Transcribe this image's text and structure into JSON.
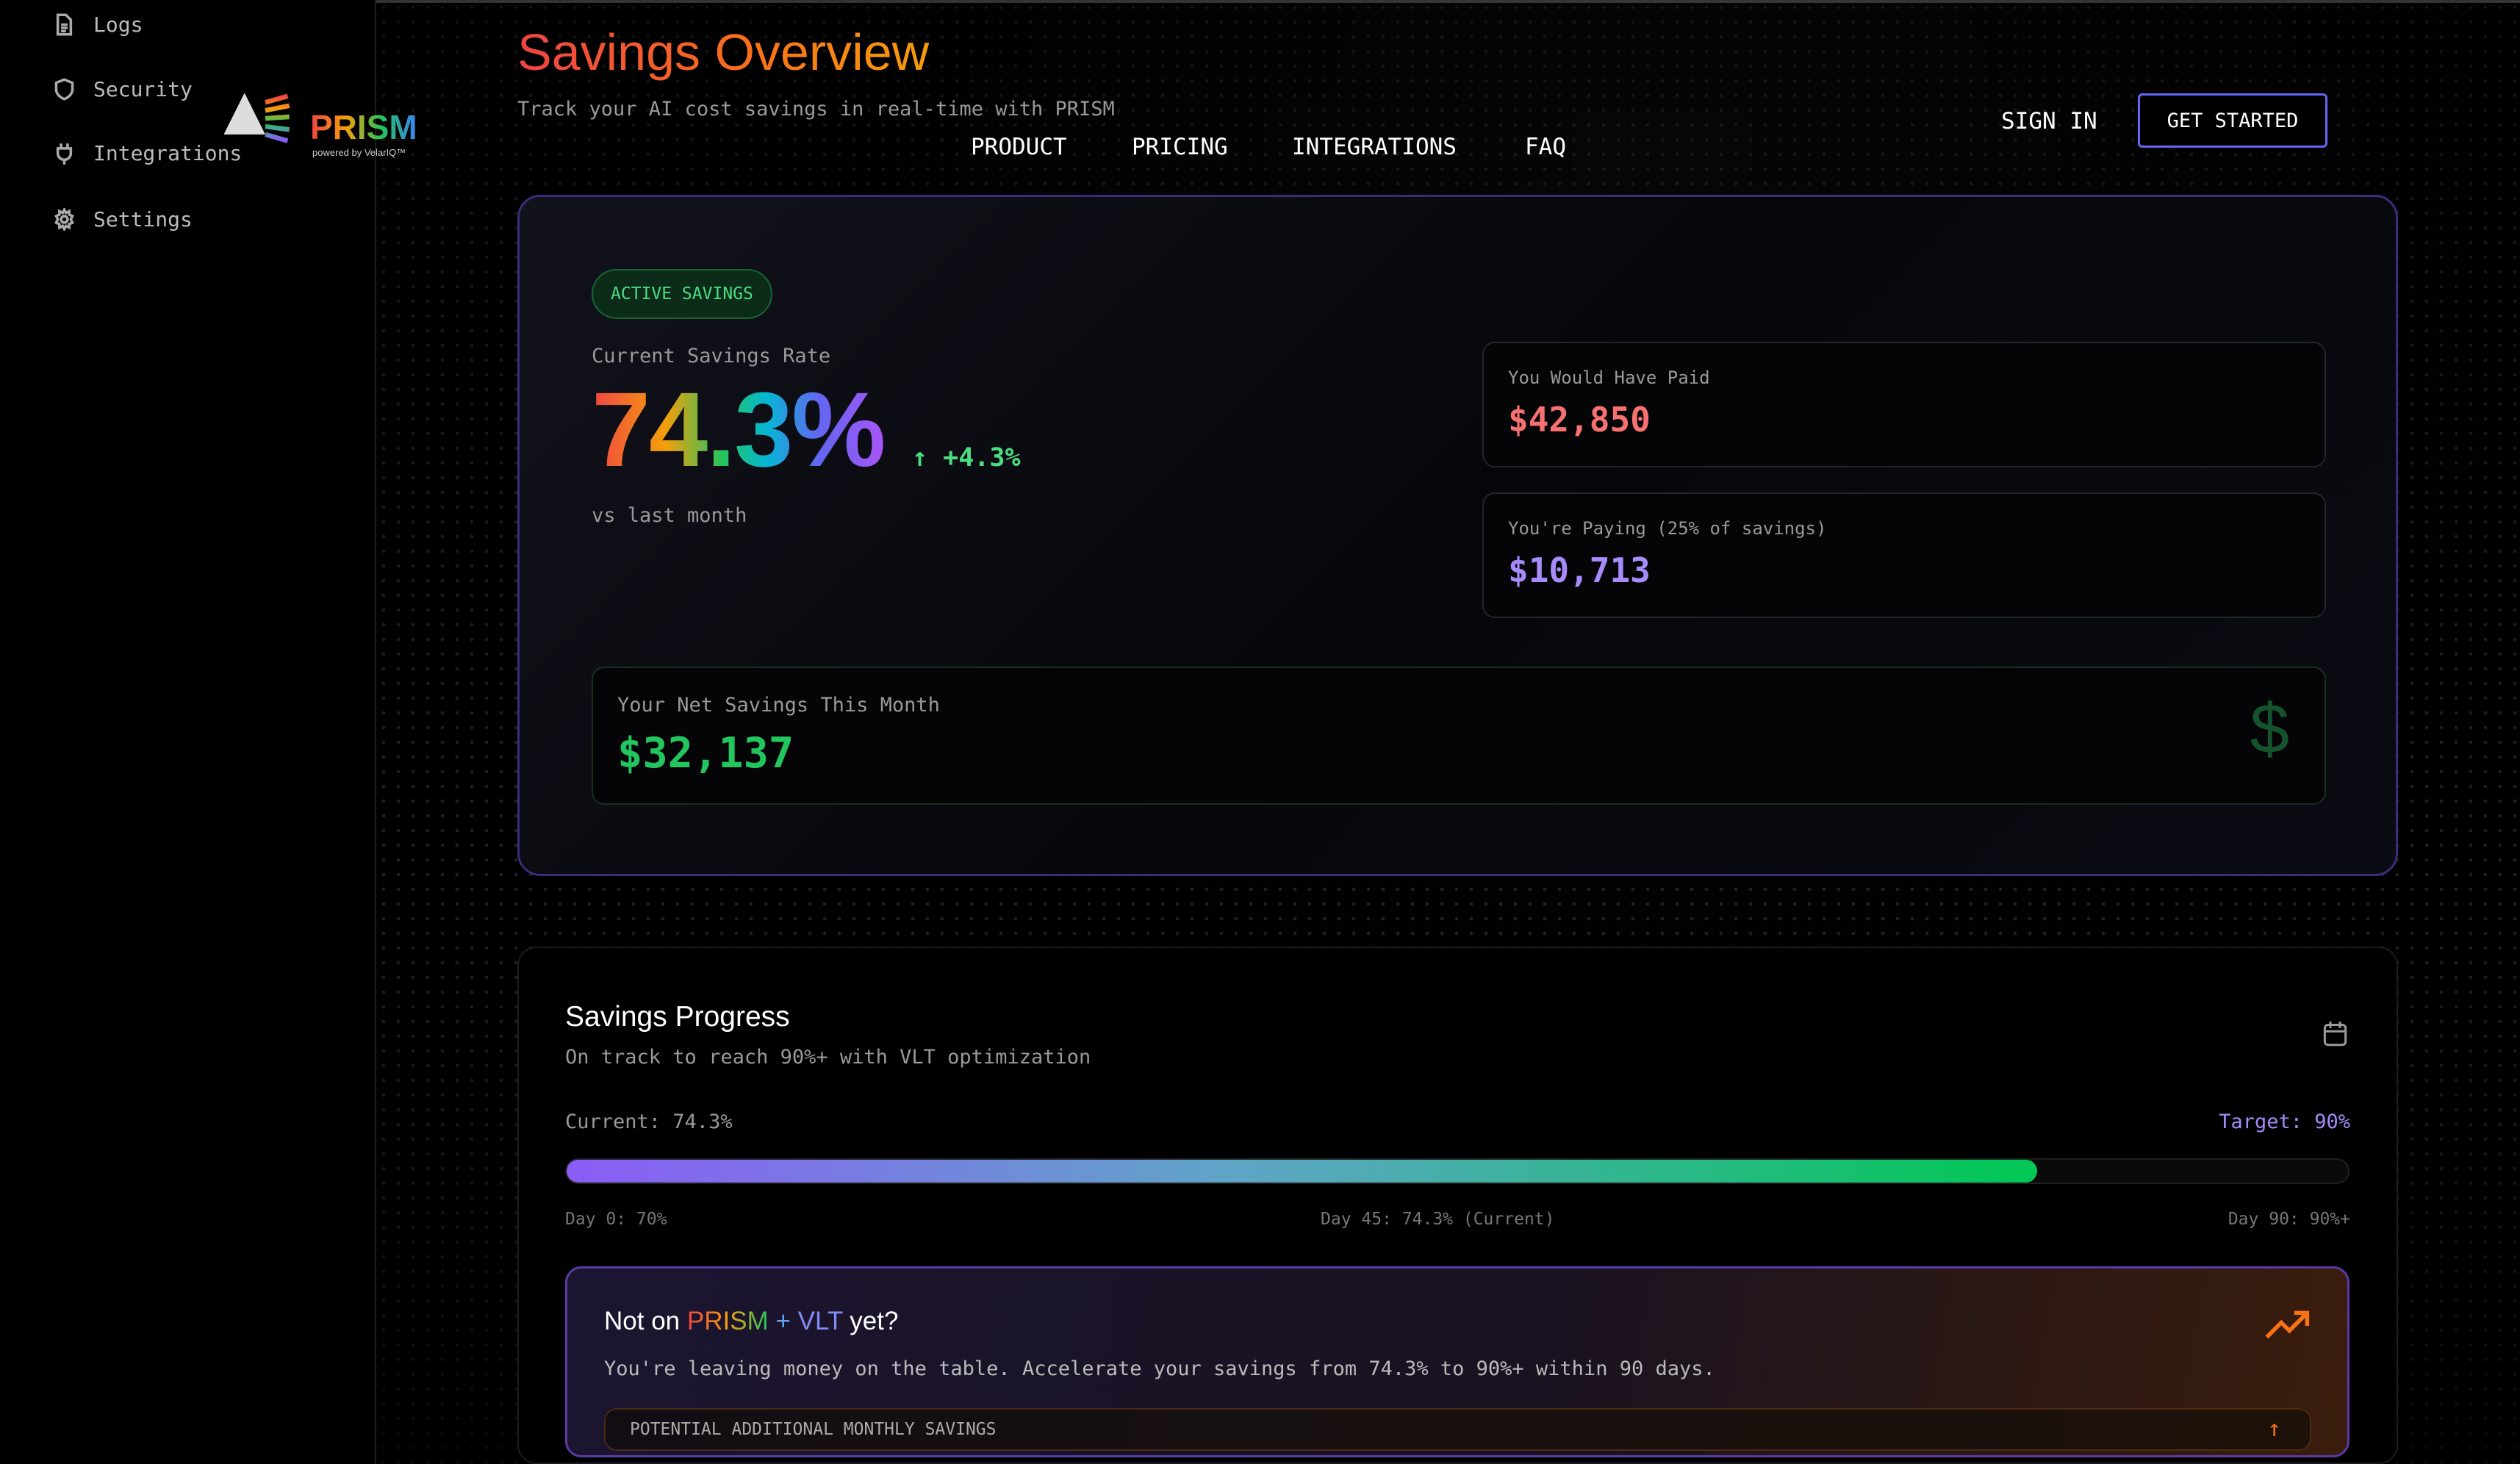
{
  "sidebar": {
    "items": [
      {
        "label": "Logs",
        "icon": "file-text-icon"
      },
      {
        "label": "Security",
        "icon": "shield-icon"
      },
      {
        "label": "Integrations",
        "icon": "plug-icon"
      },
      {
        "label": "Settings",
        "icon": "gear-icon"
      }
    ]
  },
  "logo": {
    "name": "PRISM",
    "tagline": "powered by VelarIQ™"
  },
  "header": {
    "title": "Savings Overview",
    "subtitle": "Track your AI cost savings in real-time with PRISM"
  },
  "nav": {
    "items": [
      "PRODUCT",
      "PRICING",
      "INTEGRATIONS",
      "FAQ"
    ],
    "sign_in": "SIGN IN",
    "get_started": "GET STARTED"
  },
  "overview": {
    "badge": "ACTIVE SAVINGS",
    "rate_label": "Current Savings Rate",
    "rate": "74.3%",
    "delta": "+4.3%",
    "delta_note": "vs last month",
    "would_have_paid_label": "You Would Have Paid",
    "would_have_paid": "$42,850",
    "paying_label": "You're Paying (25% of savings)",
    "paying": "$10,713",
    "net_label": "Your Net Savings This Month",
    "net": "$32,137"
  },
  "progress": {
    "title": "Savings Progress",
    "subtitle": "On track to reach 90%+ with VLT optimization",
    "current_label": "Current: 74.3%",
    "target_label": "Target: 90%",
    "current_value": 74.3,
    "target_value": 90,
    "milestones": [
      "Day 0: 70%",
      "Day 45: 74.3% (Current)",
      "Day 90: 90%+"
    ]
  },
  "cta": {
    "title_pre": "Not on ",
    "title_prism": "PRISM",
    "title_plus": " + ",
    "title_vlt": "VLT",
    "title_post": " yet?",
    "text": "You're leaving money on the table. Accelerate your savings from 74.3% to 90%+ within 90 days.",
    "potential_label": "POTENTIAL ADDITIONAL MONTHLY SAVINGS"
  },
  "colors": {
    "accent": "#6366f1",
    "green": "#22c55e",
    "red": "#f87171",
    "purple": "#a78bfa",
    "orange": "#f97316"
  }
}
